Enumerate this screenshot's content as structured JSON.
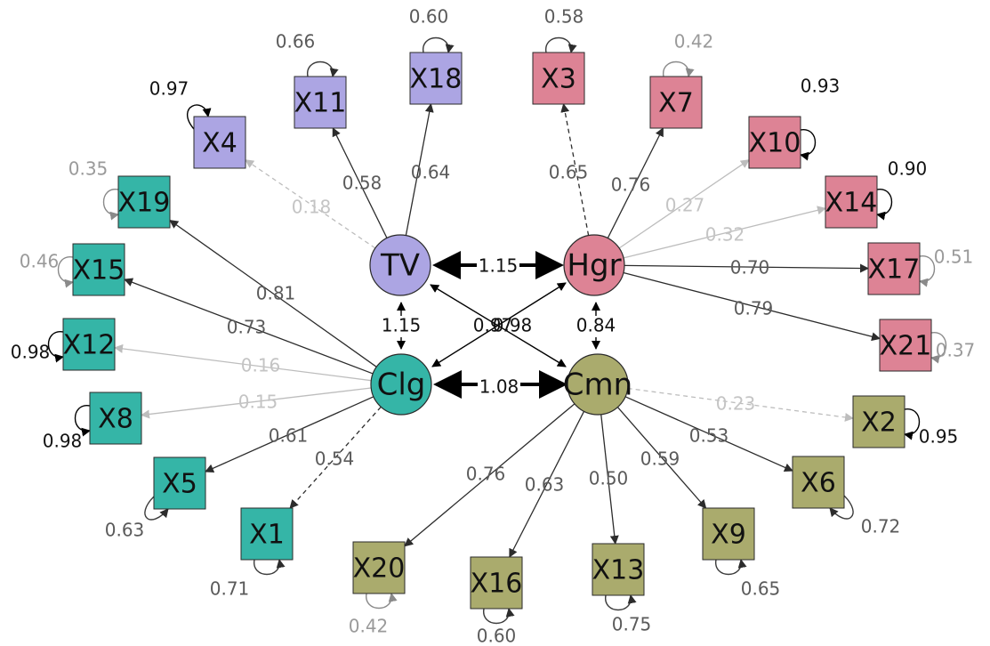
{
  "colors": {
    "tv": "#aca5e3",
    "hgr": "#dd8395",
    "clg": "#35b5a7",
    "cmn": "#aaab6d",
    "dark_text": "#5a5a5a",
    "light_text": "#c4c4c4",
    "arrow_dark": "#2c2c2c",
    "arrow_light": "#bdbdbd"
  },
  "latent_factors": [
    {
      "id": "TV",
      "label": "TV",
      "color_key": "tv"
    },
    {
      "id": "Hgr",
      "label": "Hgr",
      "color_key": "hgr"
    },
    {
      "id": "Clg",
      "label": "Clg",
      "color_key": "clg"
    },
    {
      "id": "Cmn",
      "label": "Cmn",
      "color_key": "cmn"
    }
  ],
  "observed_variables": [
    {
      "id": "X11",
      "label": "X11",
      "factor": "TV",
      "loading": "0.58",
      "loading_style": "solid",
      "error_variance": "0.66",
      "error_style": "dark"
    },
    {
      "id": "X18",
      "label": "X18",
      "factor": "TV",
      "loading": "0.64",
      "loading_style": "solid",
      "error_variance": "0.60",
      "error_style": "dark"
    },
    {
      "id": "X4",
      "label": "X4",
      "factor": "TV",
      "loading": "0.18",
      "loading_style": "light-dashed",
      "error_variance": "0.97",
      "error_style": "black"
    },
    {
      "id": "X3",
      "label": "X3",
      "factor": "Hgr",
      "loading": "0.65",
      "loading_style": "dashed",
      "error_variance": "0.58",
      "error_style": "dark"
    },
    {
      "id": "X7",
      "label": "X7",
      "factor": "Hgr",
      "loading": "0.76",
      "loading_style": "solid",
      "error_variance": "0.42",
      "error_style": "grey"
    },
    {
      "id": "X10",
      "label": "X10",
      "factor": "Hgr",
      "loading": "0.27",
      "loading_style": "light",
      "error_variance": "0.93",
      "error_style": "black"
    },
    {
      "id": "X14",
      "label": "X14",
      "factor": "Hgr",
      "loading": "0.32",
      "loading_style": "light",
      "error_variance": "0.90",
      "error_style": "black"
    },
    {
      "id": "X17",
      "label": "X17",
      "factor": "Hgr",
      "loading": "0.70",
      "loading_style": "solid",
      "error_variance": "0.51",
      "error_style": "grey"
    },
    {
      "id": "X21",
      "label": "X21",
      "factor": "Hgr",
      "loading": "0.79",
      "loading_style": "solid",
      "error_variance": "0.37",
      "error_style": "grey"
    },
    {
      "id": "X19",
      "label": "X19",
      "factor": "Clg",
      "loading": "0.81",
      "loading_style": "solid",
      "error_variance": "0.35",
      "error_style": "grey"
    },
    {
      "id": "X15",
      "label": "X15",
      "factor": "Clg",
      "loading": "0.73",
      "loading_style": "solid",
      "error_variance": "0.46",
      "error_style": "grey"
    },
    {
      "id": "X12",
      "label": "X12",
      "factor": "Clg",
      "loading": "0.16",
      "loading_style": "light",
      "error_variance": "0.98",
      "error_style": "black"
    },
    {
      "id": "X8",
      "label": "X8",
      "factor": "Clg",
      "loading": "0.15",
      "loading_style": "light",
      "error_variance": "0.98",
      "error_style": "black"
    },
    {
      "id": "X5",
      "label": "X5",
      "factor": "Clg",
      "loading": "0.61",
      "loading_style": "solid",
      "error_variance": "0.63",
      "error_style": "dark"
    },
    {
      "id": "X1",
      "label": "X1",
      "factor": "Clg",
      "loading": "0.54",
      "loading_style": "dashed",
      "error_variance": "0.71",
      "error_style": "dark"
    },
    {
      "id": "X2",
      "label": "X2",
      "factor": "Cmn",
      "loading": "0.23",
      "loading_style": "light-dashed",
      "error_variance": "0.95",
      "error_style": "black"
    },
    {
      "id": "X6",
      "label": "X6",
      "factor": "Cmn",
      "loading": "0.53",
      "loading_style": "solid",
      "error_variance": "0.72",
      "error_style": "dark"
    },
    {
      "id": "X9",
      "label": "X9",
      "factor": "Cmn",
      "loading": "0.59",
      "loading_style": "solid",
      "error_variance": "0.65",
      "error_style": "dark"
    },
    {
      "id": "X13",
      "label": "X13",
      "factor": "Cmn",
      "loading": "0.50",
      "loading_style": "solid",
      "error_variance": "0.75",
      "error_style": "dark"
    },
    {
      "id": "X16",
      "label": "X16",
      "factor": "Cmn",
      "loading": "0.63",
      "loading_style": "solid",
      "error_variance": "0.60",
      "error_style": "dark"
    },
    {
      "id": "X20",
      "label": "X20",
      "factor": "Cmn",
      "loading": "0.76",
      "loading_style": "solid",
      "error_variance": "0.42",
      "error_style": "grey"
    }
  ],
  "factor_covariances": [
    {
      "from": "TV",
      "to": "Hgr",
      "value": "1.15"
    },
    {
      "from": "TV",
      "to": "Clg",
      "value": "1.15"
    },
    {
      "from": "Hgr",
      "to": "Cmn",
      "value": "0.84"
    },
    {
      "from": "Clg",
      "to": "Cmn",
      "value": "1.08"
    },
    {
      "from": "TV",
      "to": "Cmn",
      "value": "0.97"
    },
    {
      "from": "Hgr",
      "to": "Clg",
      "value": "0.98"
    }
  ]
}
